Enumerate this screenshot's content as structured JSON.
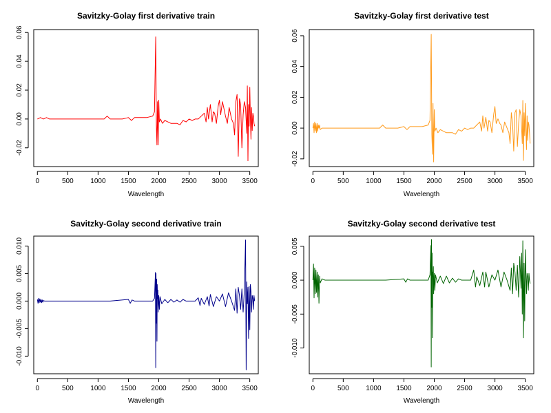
{
  "chart_data": [
    {
      "type": "line",
      "title": "Savitzky-Golay first derivative train",
      "xlabel": "Wavelength",
      "ylabel": "",
      "color": "#ff0000",
      "xlim": [
        -60,
        3640
      ],
      "ylim": [
        -0.033,
        0.062
      ],
      "xticks": [
        0,
        500,
        1000,
        1500,
        2000,
        2500,
        3000,
        3500
      ],
      "yticks": [
        -0.02,
        0.0,
        0.02,
        0.04,
        0.06
      ],
      "ytick_labels": [
        "-0.02",
        "0.00",
        "0.02",
        "0.04",
        "0.06"
      ],
      "series": [
        {
          "x": [
            0,
            50,
            100,
            150,
            200,
            250,
            300,
            500,
            800,
            1100,
            1150,
            1200,
            1400,
            1500,
            1550,
            1600,
            1700,
            1800,
            1900,
            1930,
            1950,
            1960,
            1970,
            1980,
            1990,
            2000,
            2010,
            2030,
            2060,
            2100,
            2150,
            2200,
            2250,
            2300,
            2350,
            2400,
            2450,
            2500,
            2550,
            2600,
            2650,
            2700,
            2750,
            2780,
            2800,
            2820,
            2850,
            2880,
            2900,
            2920,
            2950,
            2980,
            3000,
            3020,
            3050,
            3080,
            3100,
            3130,
            3160,
            3200,
            3230,
            3250,
            3270,
            3290,
            3310,
            3330,
            3350,
            3370,
            3390,
            3410,
            3430,
            3450,
            3460,
            3470,
            3480,
            3490,
            3500,
            3510,
            3520,
            3530,
            3540,
            3550,
            3560,
            3570,
            3580
          ],
          "y": [
            0.0,
            0.001,
            0.0,
            0.001,
            0.0,
            0.0,
            0.0,
            0.0,
            0.0,
            0.0,
            0.002,
            0.0,
            0.0,
            0.001,
            -0.001,
            0.001,
            0.001,
            0.001,
            0.002,
            0.005,
            0.057,
            -0.004,
            -0.018,
            0.012,
            -0.018,
            0.013,
            -0.002,
            0.0,
            -0.003,
            -0.001,
            -0.002,
            -0.003,
            -0.003,
            -0.003,
            -0.004,
            -0.001,
            -0.002,
            0.0,
            -0.001,
            0.0,
            0.0,
            0.002,
            0.004,
            -0.002,
            0.008,
            0.0,
            0.01,
            -0.002,
            0.005,
            0.004,
            -0.003,
            0.009,
            0.013,
            0.003,
            0.012,
            0.006,
            0.002,
            -0.003,
            0.008,
            0.0,
            -0.003,
            -0.011,
            0.012,
            0.017,
            -0.026,
            0.014,
            0.01,
            -0.02,
            0.003,
            0.012,
            0.008,
            -0.01,
            0.023,
            -0.029,
            0.01,
            -0.005,
            0.022,
            0.001,
            -0.014,
            0.008,
            -0.008,
            0.004,
            0.002,
            -0.003,
            -0.005
          ]
        }
      ]
    },
    {
      "type": "line",
      "title": "Savitzky-Golay first derivative test",
      "xlabel": "Wavelength",
      "ylabel": "",
      "color": "#ff9a1a",
      "xlim": [
        -60,
        3640
      ],
      "ylim": [
        -0.025,
        0.064
      ],
      "xticks": [
        0,
        500,
        1000,
        1500,
        2000,
        2500,
        3000,
        3500
      ],
      "yticks": [
        -0.02,
        0.0,
        0.02,
        0.04,
        0.06
      ],
      "ytick_labels": [
        "-0.02",
        "0.00",
        "0.02",
        "0.04",
        "0.06"
      ],
      "series": [
        {
          "x": [
            0,
            10,
            20,
            30,
            40,
            50,
            60,
            70,
            80,
            90,
            100,
            110,
            120,
            150,
            200,
            300,
            500,
            800,
            1100,
            1150,
            1200,
            1400,
            1500,
            1550,
            1600,
            1700,
            1800,
            1900,
            1930,
            1950,
            1960,
            1970,
            1980,
            1990,
            2000,
            2010,
            2030,
            2060,
            2100,
            2150,
            2200,
            2250,
            2300,
            2350,
            2400,
            2450,
            2500,
            2550,
            2600,
            2650,
            2700,
            2750,
            2780,
            2800,
            2820,
            2850,
            2880,
            2900,
            2920,
            2950,
            2980,
            3000,
            3020,
            3050,
            3080,
            3100,
            3130,
            3160,
            3200,
            3230,
            3250,
            3270,
            3290,
            3310,
            3330,
            3350,
            3370,
            3390,
            3410,
            3430,
            3450,
            3460,
            3470,
            3480,
            3490,
            3500,
            3510,
            3520,
            3530,
            3540,
            3550,
            3560,
            3570,
            3580
          ],
          "y": [
            0.0,
            0.003,
            -0.003,
            0.004,
            -0.002,
            0.003,
            -0.003,
            0.003,
            -0.002,
            0.002,
            0.0,
            0.002,
            -0.001,
            0.0,
            0.0,
            0.0,
            0.0,
            0.0,
            0.0,
            0.002,
            0.0,
            0.0,
            0.001,
            -0.001,
            0.001,
            0.001,
            0.001,
            0.002,
            0.005,
            0.061,
            -0.004,
            -0.017,
            0.016,
            -0.022,
            0.012,
            -0.002,
            0.0,
            -0.003,
            -0.001,
            -0.002,
            -0.003,
            -0.003,
            -0.003,
            -0.004,
            -0.001,
            -0.002,
            0.0,
            -0.001,
            0.0,
            0.0,
            0.002,
            0.004,
            -0.002,
            0.008,
            0.0,
            0.007,
            -0.002,
            0.005,
            0.004,
            -0.003,
            0.009,
            0.014,
            0.003,
            0.006,
            0.003,
            0.002,
            -0.003,
            0.004,
            0.0,
            -0.003,
            -0.01,
            0.01,
            0.003,
            -0.015,
            0.01,
            0.012,
            -0.012,
            0.003,
            0.012,
            0.008,
            -0.01,
            0.018,
            -0.021,
            0.01,
            -0.005,
            0.016,
            0.001,
            -0.014,
            0.008,
            -0.008,
            0.004,
            0.002,
            -0.003,
            -0.01
          ]
        }
      ]
    },
    {
      "type": "line",
      "title": "Savitzky-Golay second derivative train",
      "xlabel": "Wavelength",
      "ylabel": "",
      "color": "#00008b",
      "xlim": [
        -60,
        3640
      ],
      "ylim": [
        -0.0132,
        0.0118
      ],
      "xticks": [
        0,
        500,
        1000,
        1500,
        2000,
        2500,
        3000,
        3500
      ],
      "yticks": [
        -0.01,
        -0.005,
        0.0,
        0.005,
        0.01
      ],
      "ytick_labels": [
        "-0.010",
        "-0.005",
        "0.000",
        "0.005",
        "0.010"
      ],
      "series": [
        {
          "x": [
            0,
            10,
            20,
            30,
            40,
            50,
            60,
            70,
            80,
            90,
            100,
            120,
            150,
            300,
            600,
            900,
            1200,
            1500,
            1530,
            1560,
            1600,
            1700,
            1800,
            1900,
            1930,
            1945,
            1950,
            1955,
            1960,
            1965,
            1970,
            1975,
            1980,
            1985,
            1990,
            2000,
            2010,
            2020,
            2050,
            2100,
            2150,
            2200,
            2250,
            2300,
            2350,
            2400,
            2450,
            2500,
            2600,
            2650,
            2680,
            2700,
            2750,
            2800,
            2830,
            2850,
            2900,
            2950,
            3000,
            3050,
            3100,
            3150,
            3200,
            3250,
            3270,
            3290,
            3310,
            3330,
            3350,
            3370,
            3390,
            3410,
            3430,
            3440,
            3450,
            3460,
            3470,
            3480,
            3490,
            3500,
            3510,
            3520,
            3530,
            3540,
            3550,
            3560,
            3570,
            3580
          ],
          "y": [
            0.0003,
            -0.0004,
            0.0005,
            -0.0003,
            0.0004,
            -0.0002,
            0.0003,
            -0.0003,
            0.0002,
            -0.0002,
            0.0001,
            0.0,
            0.0,
            0.0,
            0.0,
            0.0,
            0.0,
            0.0003,
            -0.0004,
            0.0002,
            0.0,
            0.0,
            0.0,
            0.0,
            0.0005,
            0.0052,
            -0.0121,
            0.005,
            -0.004,
            0.004,
            -0.0073,
            0.003,
            0.0005,
            0.002,
            -0.002,
            0.001,
            -0.0015,
            0.0008,
            -0.0005,
            0.0003,
            -0.0003,
            0.0003,
            -0.0002,
            0.0002,
            -0.0002,
            0.0003,
            0.0,
            0.0,
            0.0,
            0.0006,
            -0.0008,
            0.0005,
            -0.0006,
            0.0008,
            -0.0009,
            0.0012,
            -0.001,
            0.0008,
            0.0,
            0.0013,
            -0.001,
            0.0015,
            0.0,
            -0.0017,
            0.0022,
            -0.0022,
            0.0025,
            0.001,
            -0.0015,
            0.0022,
            -0.002,
            0.0017,
            0.0111,
            -0.0125,
            0.0035,
            -0.0005,
            0.0025,
            -0.0068,
            0.0027,
            -0.0052,
            0.003,
            0.0017,
            -0.002,
            0.001,
            0.0005,
            -0.0015,
            0.001,
            0.0
          ]
        }
      ]
    },
    {
      "type": "line",
      "title": "Savitzky-Golay second derivative test",
      "xlabel": "Wavelength",
      "ylabel": "",
      "color": "#006400",
      "xlim": [
        -60,
        3640
      ],
      "ylim": [
        -0.0138,
        0.0065
      ],
      "xticks": [
        0,
        500,
        1000,
        1500,
        2000,
        2500,
        3000,
        3500
      ],
      "yticks": [
        -0.01,
        -0.005,
        0.0,
        0.005
      ],
      "ytick_labels": [
        "-0.010",
        "-0.005",
        "0.000",
        "0.005"
      ],
      "series": [
        {
          "x": [
            0,
            10,
            20,
            30,
            40,
            50,
            60,
            70,
            80,
            90,
            100,
            110,
            120,
            150,
            200,
            300,
            600,
            900,
            1200,
            1500,
            1530,
            1560,
            1600,
            1700,
            1800,
            1900,
            1930,
            1945,
            1950,
            1955,
            1960,
            1965,
            1970,
            1975,
            1980,
            1985,
            1990,
            2000,
            2010,
            2020,
            2050,
            2100,
            2150,
            2200,
            2250,
            2300,
            2350,
            2400,
            2450,
            2500,
            2600,
            2650,
            2680,
            2700,
            2750,
            2800,
            2830,
            2850,
            2900,
            2950,
            3000,
            3050,
            3100,
            3150,
            3200,
            3250,
            3270,
            3290,
            3310,
            3330,
            3350,
            3370,
            3390,
            3410,
            3430,
            3440,
            3450,
            3460,
            3470,
            3480,
            3490,
            3500,
            3510,
            3520,
            3530,
            3540,
            3550,
            3560,
            3570,
            3580
          ],
          "y": [
            0.0,
            0.0024,
            -0.0026,
            0.0018,
            -0.002,
            0.0015,
            -0.0018,
            0.0012,
            -0.0025,
            0.0008,
            -0.0034,
            0.0006,
            -0.0004,
            0.0002,
            0.0,
            0.0,
            0.0,
            0.0,
            0.0,
            0.0002,
            -0.0003,
            0.0002,
            0.0,
            0.0,
            0.0,
            0.0,
            0.0008,
            0.0051,
            -0.0128,
            0.006,
            -0.004,
            0.004,
            -0.0085,
            0.0012,
            0.0005,
            0.002,
            -0.002,
            0.001,
            -0.0015,
            0.0008,
            -0.0004,
            0.0006,
            -0.0005,
            0.0006,
            -0.0004,
            0.0003,
            -0.0003,
            0.0002,
            0.0,
            0.0,
            0.0,
            0.0015,
            -0.001,
            0.0005,
            -0.0008,
            0.0012,
            -0.001,
            0.0012,
            -0.001,
            0.0008,
            0.0,
            0.0015,
            -0.001,
            0.0012,
            0.0,
            -0.0015,
            0.0018,
            -0.002,
            0.0025,
            0.0012,
            -0.0015,
            0.0022,
            -0.0025,
            0.0035,
            -0.0012,
            0.004,
            -0.005,
            0.0058,
            -0.0085,
            0.0025,
            -0.006,
            0.0045,
            0.0015,
            -0.002,
            0.001,
            0.0005,
            -0.0015,
            0.001,
            0.0,
            -0.0005
          ]
        }
      ]
    }
  ]
}
